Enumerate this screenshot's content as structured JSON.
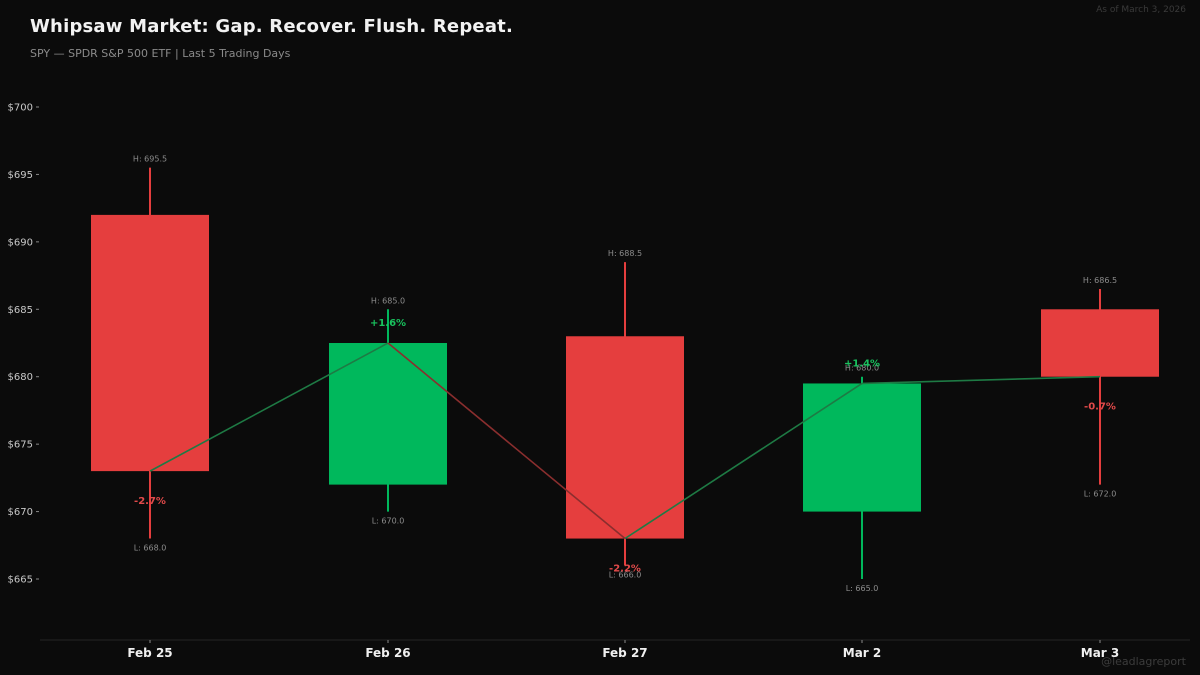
{
  "header": {
    "title": "Whipsaw Market: Gap. Recover. Flush. Repeat.",
    "subtitle": "SPY — SPDR S&P 500 ETF | Last 5 Trading Days",
    "as_of": "As of March 3, 2026"
  },
  "watermark": "@leadlagreport",
  "colors": {
    "background": "#0b0b0b",
    "up": "#00b85c",
    "down": "#e53e3e",
    "up_line": "#1e7a44",
    "down_line": "#8a2e2e",
    "axis_text": "#c8c8c8",
    "hl_text": "#8c8c8c"
  },
  "chart_data": {
    "type": "candlestick",
    "title": "Whipsaw Market: Gap. Recover. Flush. Repeat.",
    "subtitle": "SPY — SPDR S&P 500 ETF | Last 5 Trading Days",
    "xlabel": "",
    "ylabel": "",
    "ylim": [
      660,
      701
    ],
    "yticks": [
      665,
      670,
      675,
      680,
      685,
      690,
      695,
      700
    ],
    "ytick_labels": [
      "$665",
      "$670",
      "$675",
      "$680",
      "$685",
      "$690",
      "$695",
      "$700"
    ],
    "grid": false,
    "categories": [
      "Feb 25",
      "Feb 26",
      "Feb 27",
      "Mar 2",
      "Mar 3"
    ],
    "candles": [
      {
        "date": "Feb 25",
        "open": 692.0,
        "high": 695.5,
        "low": 668.0,
        "close": 673.0,
        "change_pct": "-2.7%",
        "high_label": "H: 695.5",
        "low_label": "L: 668.0",
        "direction": "down"
      },
      {
        "date": "Feb 26",
        "open": 672.0,
        "high": 685.0,
        "low": 670.0,
        "close": 682.5,
        "change_pct": "+1.6%",
        "high_label": "H: 685.0",
        "low_label": "L: 670.0",
        "direction": "up"
      },
      {
        "date": "Feb 27",
        "open": 683.0,
        "high": 688.5,
        "low": 666.0,
        "close": 668.0,
        "change_pct": "-2.2%",
        "high_label": "H: 688.5",
        "low_label": "L: 666.0",
        "direction": "down"
      },
      {
        "date": "Mar 2",
        "open": 670.0,
        "high": 680.0,
        "low": 665.0,
        "close": 679.5,
        "change_pct": "+1.4%",
        "high_label": "H: 680.0",
        "low_label": "L: 665.0",
        "direction": "up"
      },
      {
        "date": "Mar 3",
        "open": 685.0,
        "high": 686.5,
        "low": 672.0,
        "close": 680.0,
        "change_pct": "-0.7%",
        "high_label": "H: 686.5",
        "low_label": "L: 672.0",
        "direction": "down"
      }
    ],
    "close_line": {
      "values": [
        673.0,
        682.5,
        668.0,
        679.5,
        680.0
      ],
      "segment_colors": [
        "up",
        "down",
        "up",
        "up"
      ]
    },
    "annotations": [
      "As of March 3, 2026",
      "@leadlagreport"
    ]
  }
}
